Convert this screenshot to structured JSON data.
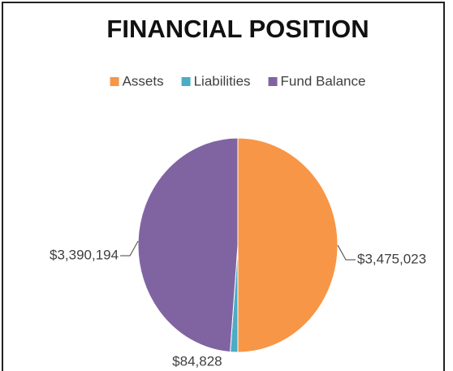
{
  "chart_data": {
    "type": "pie",
    "title": "FINANCIAL POSITION",
    "categories": [
      "Assets",
      "Liabilities",
      "Fund Balance"
    ],
    "values": [
      3475023,
      84828,
      3390194
    ],
    "value_labels": [
      "$3,475,023",
      "$84,828",
      "$3,390,194"
    ],
    "colors": [
      "#f79646",
      "#4bacc6",
      "#8064a2"
    ],
    "legend": "top"
  }
}
